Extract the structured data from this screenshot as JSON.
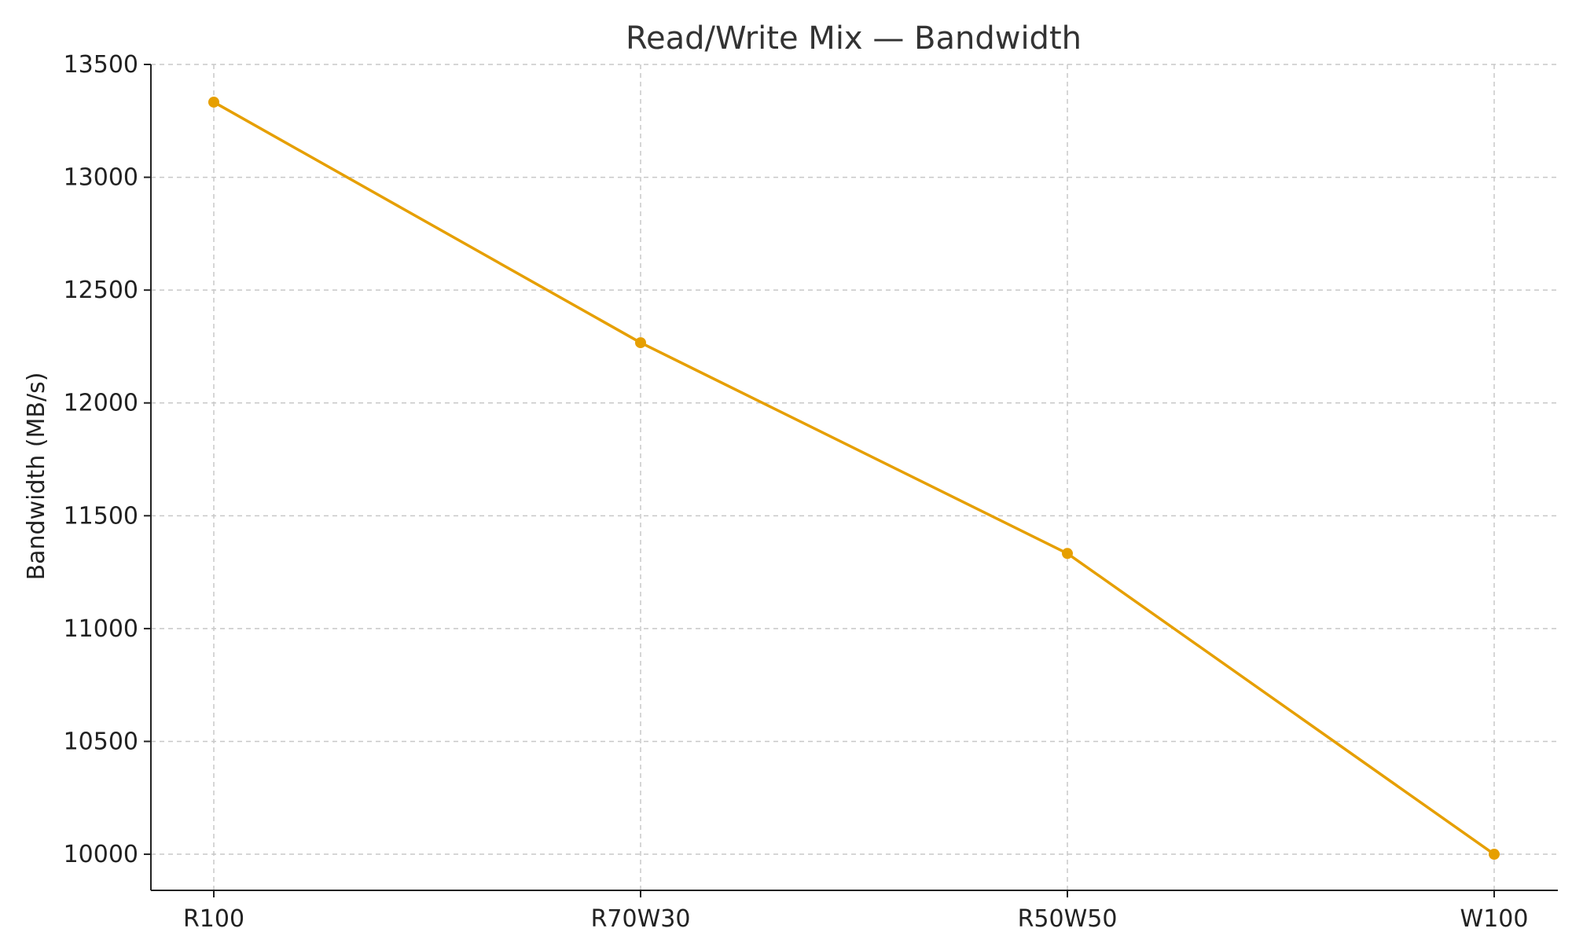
{
  "chart_data": {
    "type": "line",
    "title": "Read/Write Mix — Bandwidth",
    "xlabel": "",
    "ylabel": "Bandwidth (MB/s)",
    "categories": [
      "R100",
      "R70W30",
      "R50W50",
      "W100"
    ],
    "series": [
      {
        "values": [
          13333,
          12267,
          11333,
          10000
        ],
        "color": "#E69F00",
        "marker": "circle"
      }
    ],
    "yticks": [
      10000,
      10500,
      11000,
      11500,
      12000,
      12500,
      13000,
      13500
    ],
    "ylim": [
      9840,
      13500
    ],
    "grid": true,
    "legend": "none"
  }
}
